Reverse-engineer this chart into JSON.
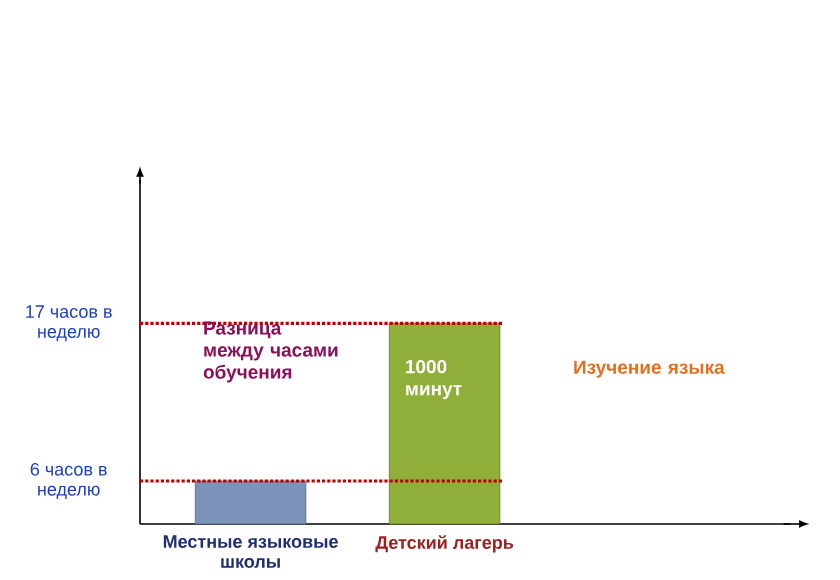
{
  "chart_data": {
    "type": "bar",
    "categories": [
      "Местные языковые школы",
      "Детский лагерь"
    ],
    "values": [
      6,
      17
    ],
    "colors": [
      "#7b93b8",
      "#8fae3a"
    ],
    "ylim": [
      3,
      27
    ],
    "yticks": [
      {
        "value": 6,
        "label": "6 часов в неделю"
      },
      {
        "value": 17,
        "label": "17 часов в неделю"
      }
    ],
    "ref_lines": [
      {
        "axis": "y",
        "value": 6,
        "color": "#c00000",
        "line_style": "dotted"
      },
      {
        "axis": "y",
        "value": 17,
        "color": "#c00000",
        "line_style": "dotted"
      }
    ],
    "annotations": [
      "Разница между часами обучения",
      "1000 минут",
      "Изучение языка"
    ],
    "grid": false
  }
}
